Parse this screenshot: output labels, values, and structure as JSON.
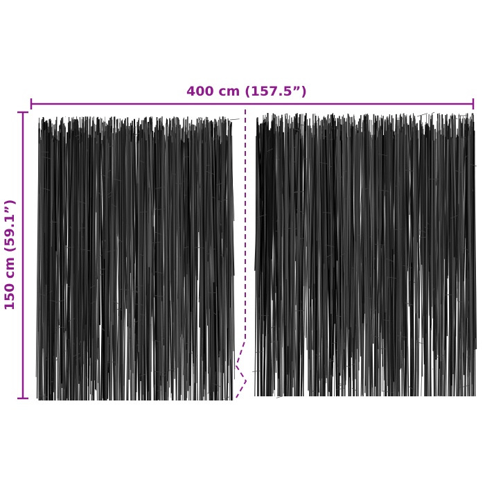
{
  "dimensions": {
    "width_label": "400 cm (157.5”)",
    "height_label": "150 cm (59.1”)"
  },
  "colors": {
    "dimension": "#8e1a8c",
    "strands": "#111111"
  },
  "panels": [
    {
      "name": "left-panel"
    },
    {
      "name": "right-panel"
    }
  ]
}
